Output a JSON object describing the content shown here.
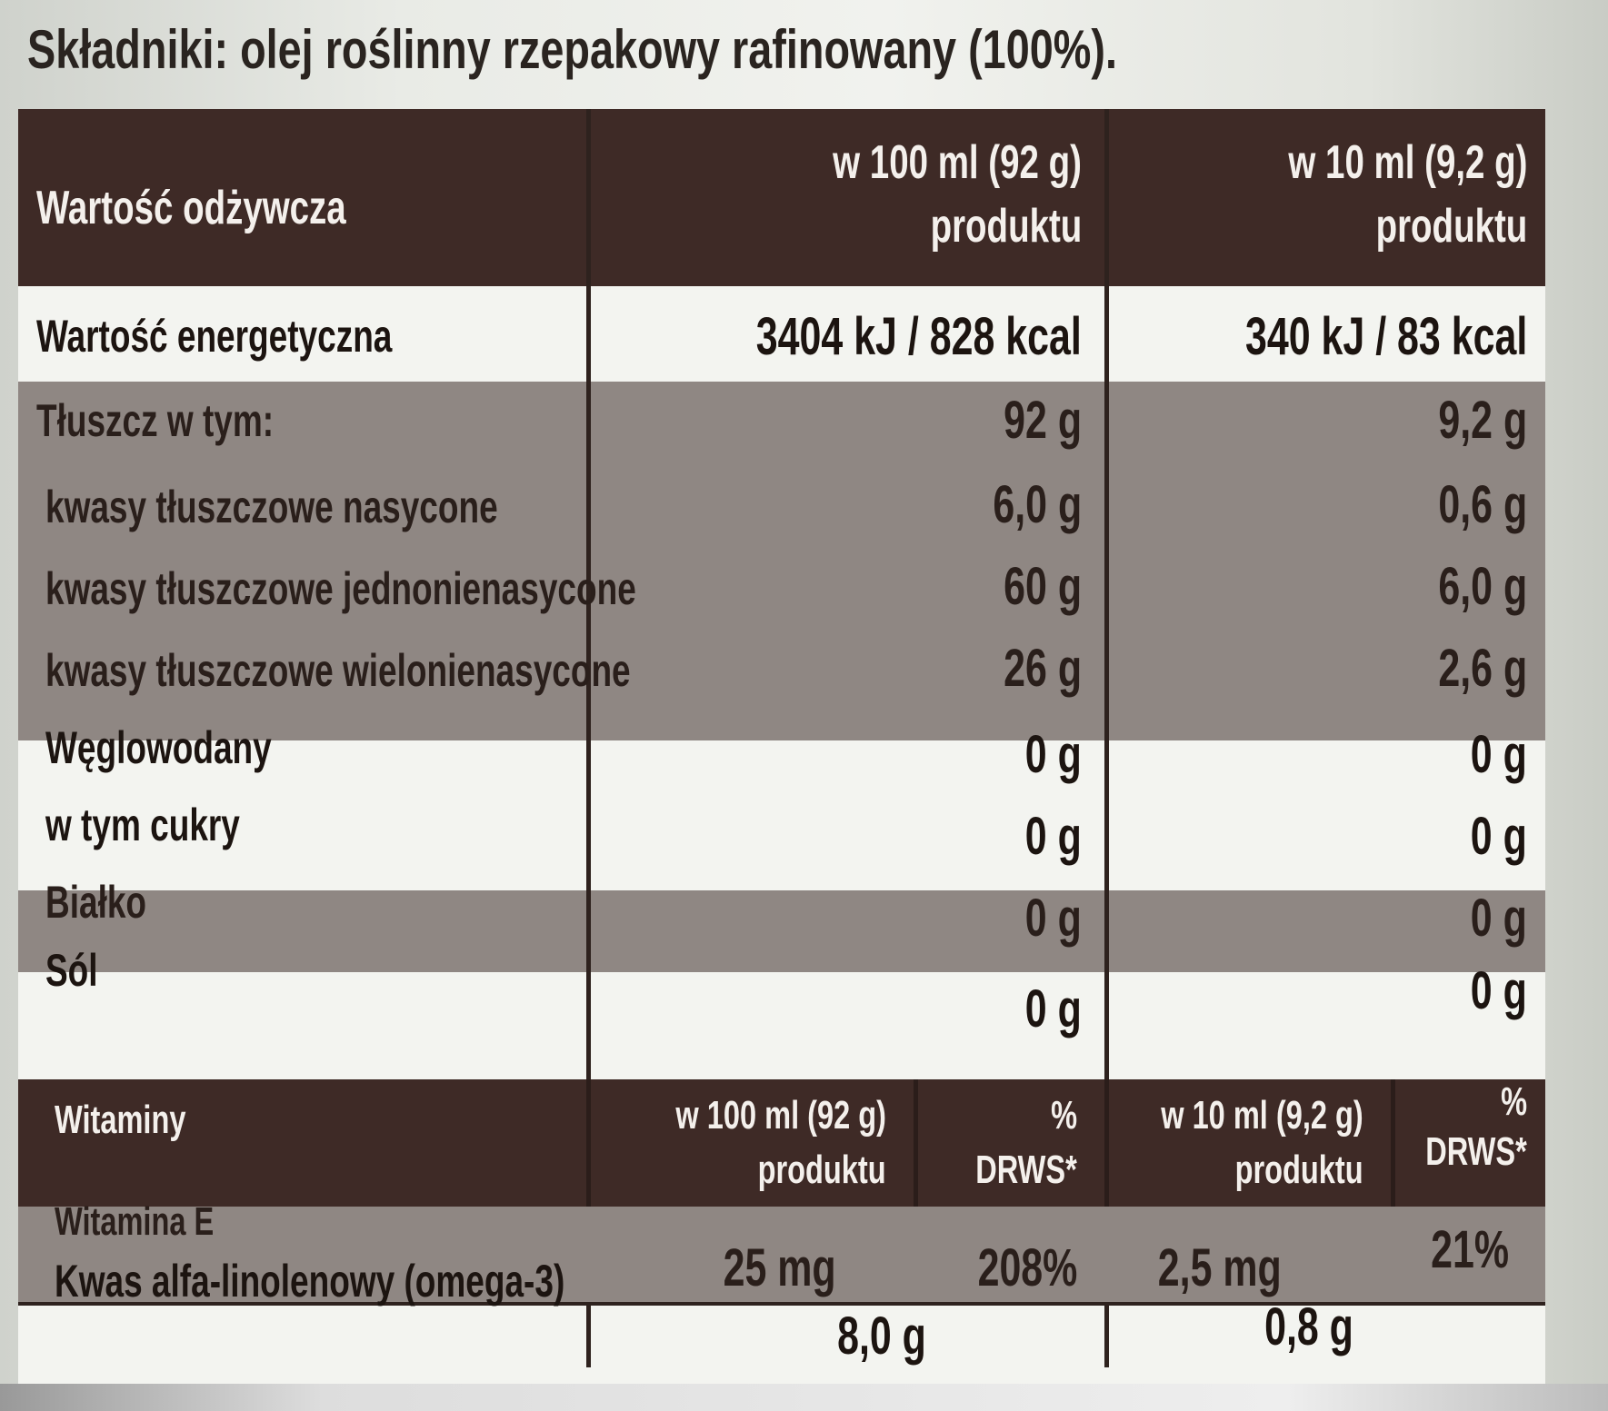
{
  "ingredients": "Składniki: olej roślinny rzepakowy rafinowany (100%).",
  "header": {
    "label": "Wartość odżywcza",
    "col1_line1": "w 100 ml (92 g)",
    "col1_line2": "produktu",
    "col2_line1": "w 10 ml (9,2 g)",
    "col2_line2": "produktu"
  },
  "rows": [
    {
      "name": "Wartość energetyczna",
      "v100": "3404 kJ / 828 kcal",
      "v10": "340 kJ / 83 kcal"
    },
    {
      "name": "Tłuszcz w tym:",
      "v100": "92 g",
      "v10": "9,2 g"
    },
    {
      "name": "kwasy tłuszczowe nasycone",
      "v100": "6,0 g",
      "v10": "0,6 g"
    },
    {
      "name": "kwasy tłuszczowe jednonienasycone",
      "v100": "60 g",
      "v10": "6,0 g"
    },
    {
      "name": "kwasy tłuszczowe wielonienasycone",
      "v100": "26 g",
      "v10": "2,6 g"
    },
    {
      "name": "Węglowodany",
      "v100": "0 g",
      "v10": "0 g"
    },
    {
      "name": "w tym cukry",
      "v100": "0 g",
      "v10": "0 g"
    },
    {
      "name": "Białko",
      "v100": "0 g",
      "v10": "0 g"
    },
    {
      "name": "Sól",
      "v100": "0 g",
      "v10": "0 g"
    }
  ],
  "vitamins": {
    "label": "Witaminy",
    "col1_line1": "w 100 ml (92 g)",
    "col1_line2": "produktu",
    "col2_line1": "%",
    "col2_line2": "DRWS*",
    "col3_line1": "w 10 ml (9,2 g)",
    "col3_line2": "produktu",
    "col4_line1": "%",
    "col4_line2": "DRWS*",
    "vitE_name": "Witamina E",
    "vitE_v100": "25 mg",
    "vitE_p100": "208%",
    "vitE_v10": "2,5 mg",
    "vitE_p10": "21%"
  },
  "omega": {
    "name": "Kwas alfa-linolenowy (omega-3)",
    "v100": "8,0 g",
    "v10": "0,8 g"
  }
}
